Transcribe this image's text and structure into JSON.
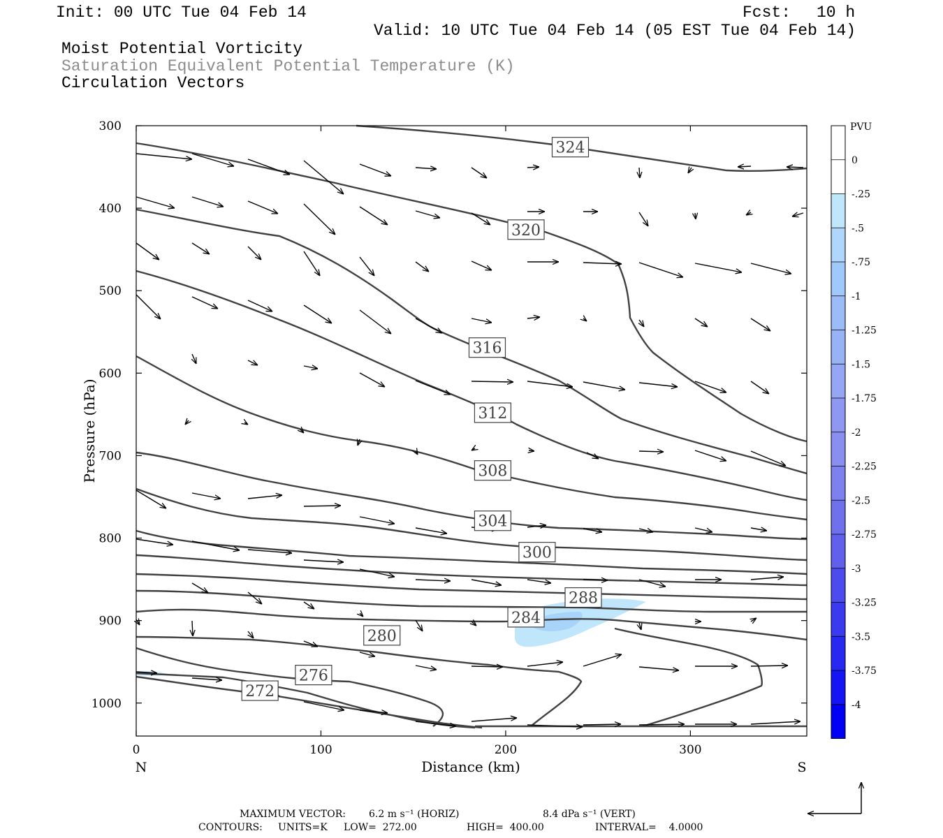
{
  "header": {
    "init": "Init: 00 UTC Tue 04 Feb 14",
    "fcst_label": "Fcst:",
    "fcst_value": "10 h",
    "valid": "Valid: 10 UTC Tue 04 Feb 14 (05 EST Tue 04 Feb 14)",
    "field1": "Moist Potential Vorticity",
    "field2": "Saturation Equivalent Potential Temperature (K)",
    "field3": "Circulation Vectors"
  },
  "footer": {
    "max_vector_label": "MAXIMUM VECTOR:",
    "horiz": "6.2 m s⁻¹ (HORIZ)",
    "vert": "8.4 dPa s⁻¹ (VERT)",
    "contours_label": "CONTOURS:",
    "units": "UNITS=K",
    "low": "LOW=  272.00",
    "high": "HIGH=  400.00",
    "interval": "INTERVAL=    4.0000"
  },
  "colors": {
    "contour": "#404040",
    "pv_light": "#c0e6fc",
    "pv_mid": "#a0cdfa"
  },
  "chart_data": {
    "type": "cross-section",
    "xlabel": "Distance (km)",
    "ylabel": "Pressure (hPa)",
    "x_ticks": [
      "0",
      "100",
      "200",
      "300"
    ],
    "x_tick_values": [
      0,
      100,
      200,
      300
    ],
    "y_ticks": [
      "300",
      "400",
      "500",
      "600",
      "700",
      "800",
      "900",
      "1000"
    ],
    "y_tick_values": [
      300,
      400,
      500,
      600,
      700,
      800,
      900,
      1000
    ],
    "xlim": [
      0,
      363
    ],
    "ylim": [
      1040,
      300
    ],
    "left_end_label": "N",
    "right_end_label": "S",
    "colorbar": {
      "unit": "PVU",
      "labels": [
        "0",
        "-.25",
        "-.5",
        "-.75",
        "-1",
        "-1.25",
        "-1.5",
        "-1.75",
        "-2",
        "-2.25",
        "-2.5",
        "-2.75",
        "-3",
        "-3.25",
        "-3.5",
        "-3.75",
        "-4"
      ],
      "colors": [
        "#ffffff",
        "#ffffff",
        "#c0e6fc",
        "#b0d6fc",
        "#a0c8fa",
        "#9cbcf8",
        "#98b2f6",
        "#94a6f4",
        "#8e98f2",
        "#8a8ef0",
        "#7e80ee",
        "#7070ec",
        "#6060ec",
        "#4c4cee",
        "#3a3af0",
        "#2828f2",
        "#1414f4",
        "#0000f6"
      ]
    },
    "contour_labels": [
      {
        "text": "324",
        "x": 235,
        "p": 326
      },
      {
        "text": "320",
        "x": 211,
        "p": 426
      },
      {
        "text": "316",
        "x": 190,
        "p": 569
      },
      {
        "text": "312",
        "x": 193,
        "p": 648
      },
      {
        "text": "308",
        "x": 193,
        "p": 718
      },
      {
        "text": "304",
        "x": 193,
        "p": 779
      },
      {
        "text": "300",
        "x": 217,
        "p": 817
      },
      {
        "text": "288",
        "x": 242,
        "p": 872
      },
      {
        "text": "284",
        "x": 211,
        "p": 896
      },
      {
        "text": "280",
        "x": 133,
        "p": 918
      },
      {
        "text": "276",
        "x": 96,
        "p": 966
      },
      {
        "text": "272",
        "x": 67,
        "p": 985
      }
    ]
  }
}
